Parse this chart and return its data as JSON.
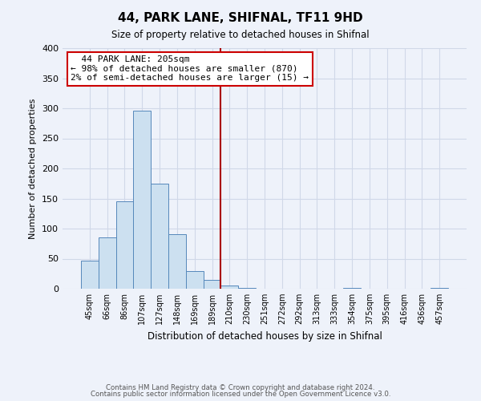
{
  "title": "44, PARK LANE, SHIFNAL, TF11 9HD",
  "subtitle": "Size of property relative to detached houses in Shifnal",
  "xlabel": "Distribution of detached houses by size in Shifnal",
  "ylabel": "Number of detached properties",
  "bin_labels": [
    "45sqm",
    "66sqm",
    "86sqm",
    "107sqm",
    "127sqm",
    "148sqm",
    "169sqm",
    "189sqm",
    "210sqm",
    "230sqm",
    "251sqm",
    "272sqm",
    "292sqm",
    "313sqm",
    "333sqm",
    "354sqm",
    "375sqm",
    "395sqm",
    "416sqm",
    "436sqm",
    "457sqm"
  ],
  "bar_heights": [
    47,
    86,
    145,
    296,
    175,
    91,
    30,
    15,
    5,
    1,
    0,
    0,
    0,
    0,
    0,
    1,
    0,
    0,
    0,
    0,
    1
  ],
  "bar_color": "#cce0f0",
  "bar_edge_color": "#5588bb",
  "vline_color": "#aa0000",
  "annotation_title": "44 PARK LANE: 205sqm",
  "annotation_line1": "← 98% of detached houses are smaller (870)",
  "annotation_line2": "2% of semi-detached houses are larger (15) →",
  "annotation_box_color": "#ffffff",
  "annotation_box_edge": "#cc0000",
  "ylim": [
    0,
    400
  ],
  "yticks": [
    0,
    50,
    100,
    150,
    200,
    250,
    300,
    350,
    400
  ],
  "footer1": "Contains HM Land Registry data © Crown copyright and database right 2024.",
  "footer2": "Contains public sector information licensed under the Open Government Licence v3.0.",
  "bg_color": "#eef2fa",
  "grid_color": "#d0d8e8"
}
